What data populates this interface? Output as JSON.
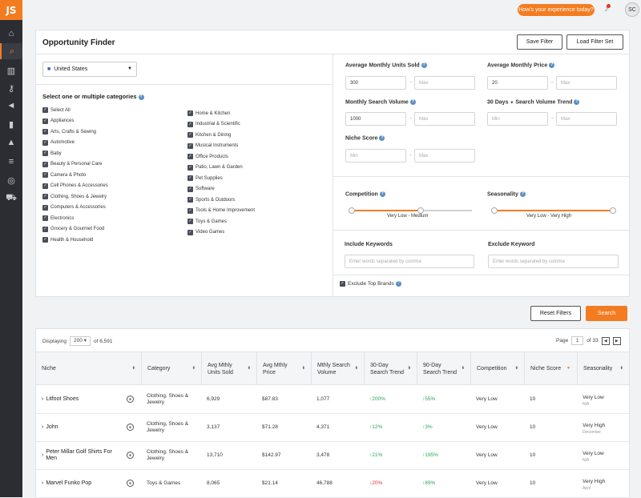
{
  "app": {
    "logo": "JS"
  },
  "sidebar": {
    "icons": [
      "home-icon",
      "search-icon",
      "buildings-icon",
      "key-icon",
      "megaphone-icon",
      "bar-chart-icon",
      "graduation-cap-icon",
      "stack-icon",
      "chrome-icon",
      "cart-icon"
    ],
    "active": "search-icon"
  },
  "topbar": {
    "experience_label": "How's your experience today?",
    "avatar_initials": "SC"
  },
  "finder": {
    "title": "Opportunity Finder",
    "save_filter": "Save Filter",
    "load_filter_set": "Load Filter Set",
    "country": "United States",
    "categories_heading": "Select one or multiple categories",
    "categories_col1": [
      "Select All",
      "Appliances",
      "Arts, Crafts & Sewing",
      "Automotive",
      "Baby",
      "Beauty & Personal Care",
      "Camera & Photo",
      "Cell Phones & Accessories",
      "Clothing, Shoes & Jewelry",
      "Computers & Accessories",
      "Electronics",
      "Grocery & Gourmet Food",
      "Health & Household"
    ],
    "categories_col2": [
      "Home & Kitchen",
      "Industrial & Scientific",
      "Kitchen & Dining",
      "Musical Instruments",
      "Office Products",
      "Patio, Lawn & Garden",
      "Pet Supplies",
      "Software",
      "Sports & Outdoors",
      "Tools & Home Improvement",
      "Toys & Games",
      "Video Games"
    ],
    "filters": {
      "units_sold": {
        "label": "Average Monthly Units Sold",
        "min": "300",
        "max_placeholder": "Max"
      },
      "price": {
        "label": "Average Monthly Price",
        "min": "20",
        "max_placeholder": "Max"
      },
      "search_volume": {
        "label": "Monthly Search Volume",
        "min": "1000",
        "max_placeholder": "Max"
      },
      "trend": {
        "period": "30 Days",
        "label": "Search Volume Trend",
        "min_placeholder": "Min",
        "max_placeholder": "Max"
      },
      "niche_score": {
        "label": "Niche Score",
        "min_placeholder": "Min",
        "max_placeholder": "Max"
      },
      "competition": {
        "label": "Competition",
        "range_low": "Very Low",
        "range_high": "Medium",
        "low_fraction": 0.0,
        "high_fraction": 0.57
      },
      "seasonality": {
        "label": "Seasonality",
        "range_low": "Very Low",
        "range_high": "Very High",
        "low_fraction": 0.0,
        "high_fraction": 1.0
      },
      "include_keywords": {
        "label": "Include Keywords",
        "placeholder": "Enter words separated by comma"
      },
      "exclude_keyword": {
        "label": "Exclude Keyword",
        "placeholder": "Enter words separated by comma"
      },
      "exclude_top_brands": {
        "label": "Exclude Top Brands",
        "checked": true
      }
    },
    "reset": "Reset Filters",
    "search": "Search"
  },
  "results": {
    "displaying_label": "Displaying",
    "page_size": "200",
    "of_total": "of 6,591",
    "page_label": "Page",
    "page": "1",
    "of_pages": "of 33",
    "columns": [
      "Niche",
      "Category",
      "Avg Mthly Units Sold",
      "Avg Mthly Price",
      "Mthly Search Volume",
      "30-Day Search Trend",
      "90-Day Search Trend",
      "Competition",
      "Niche Score",
      "Seasonality"
    ],
    "rows": [
      {
        "niche": "Litfoot Shoes",
        "category": "Clothing, Shoes & Jewelry",
        "units": "6,929",
        "price": "$87.83",
        "volume": "1,077",
        "t30": "200%",
        "t30_dir": "up",
        "t90": "55%",
        "t90_dir": "up",
        "competition": "Very Low",
        "score": "10",
        "seasonality": "Very Low",
        "season_sub": "N/A"
      },
      {
        "niche": "John",
        "category": "Clothing, Shoes & Jewelry",
        "units": "3,137",
        "price": "$71.28",
        "volume": "4,371",
        "t30": "12%",
        "t30_dir": "up",
        "t90": "3%",
        "t90_dir": "up",
        "competition": "Very Low",
        "score": "10",
        "seasonality": "Very High",
        "season_sub": "December"
      },
      {
        "niche": "Peter Millar Golf Shirts For Men",
        "category": "Clothing, Shoes & Jewelry",
        "units": "13,710",
        "price": "$142.97",
        "volume": "3,478",
        "t30": "21%",
        "t30_dir": "up",
        "t90": "195%",
        "t90_dir": "up",
        "competition": "Very Low",
        "score": "10",
        "seasonality": "Very Low",
        "season_sub": "N/A"
      },
      {
        "niche": "Marvel Funko Pop",
        "category": "Toys & Games",
        "units": "8,065",
        "price": "$21.14",
        "volume": "46,788",
        "t30": "20%",
        "t30_dir": "down",
        "t90": "89%",
        "t90_dir": "up",
        "competition": "Very Low",
        "score": "10",
        "seasonality": "Very High",
        "season_sub": "April"
      }
    ]
  },
  "colors": {
    "accent": "#f47c20",
    "sidebar": "#2b2d33",
    "trend_up": "#29a35a",
    "trend_down": "#d9352b"
  }
}
